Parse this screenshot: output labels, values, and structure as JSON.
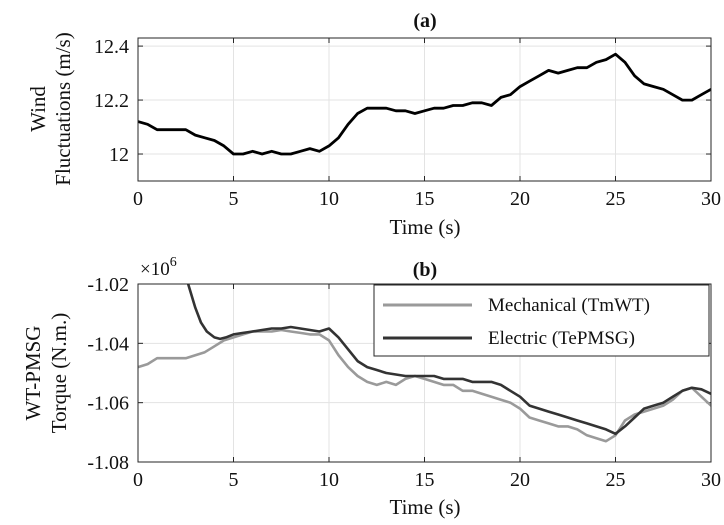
{
  "chart_data": [
    {
      "type": "line",
      "title": "(a)",
      "xlabel": "Time (s)",
      "ylabel_lines": [
        "Wind",
        "Fluctuations (m/s)"
      ],
      "xlim": [
        0,
        30
      ],
      "ylim": [
        11.9,
        12.43
      ],
      "xticks": [
        0,
        5,
        10,
        15,
        20,
        25,
        30
      ],
      "xtick_labels": [
        "0",
        "5",
        "10",
        "15",
        "20",
        "25",
        "30"
      ],
      "yticks": [
        12,
        12.2,
        12.4
      ],
      "ytick_labels": [
        "12",
        "12.2",
        "12.4"
      ],
      "grid": true,
      "series": [
        {
          "color": "#000000",
          "x": [
            0,
            0.5,
            1,
            1.5,
            2,
            2.5,
            3,
            3.5,
            4,
            4.5,
            5,
            5.5,
            6,
            6.5,
            7,
            7.5,
            8,
            8.5,
            9,
            9.5,
            10,
            10.5,
            11,
            11.5,
            12,
            12.5,
            13,
            13.5,
            14,
            14.5,
            15,
            15.5,
            16,
            16.5,
            17,
            17.5,
            18,
            18.5,
            19,
            19.5,
            20,
            20.5,
            21,
            21.5,
            22,
            22.5,
            23,
            23.5,
            24,
            24.5,
            25,
            25.5,
            26,
            26.5,
            27,
            27.5,
            28,
            28.5,
            29,
            29.5,
            30
          ],
          "y": [
            12.12,
            12.11,
            12.09,
            12.09,
            12.09,
            12.09,
            12.07,
            12.06,
            12.05,
            12.03,
            12.0,
            12.0,
            12.01,
            12.0,
            12.01,
            12.0,
            12.0,
            12.01,
            12.02,
            12.01,
            12.03,
            12.06,
            12.11,
            12.15,
            12.17,
            12.17,
            12.17,
            12.16,
            12.16,
            12.15,
            12.16,
            12.17,
            12.17,
            12.18,
            12.18,
            12.19,
            12.19,
            12.18,
            12.21,
            12.22,
            12.25,
            12.27,
            12.29,
            12.31,
            12.3,
            12.31,
            12.32,
            12.32,
            12.34,
            12.35,
            12.37,
            12.34,
            12.29,
            12.26,
            12.25,
            12.24,
            12.22,
            12.2,
            12.2,
            12.22,
            12.24
          ]
        }
      ]
    },
    {
      "type": "line",
      "title": "(b)",
      "xlabel": "Time (s)",
      "ylabel_lines": [
        "WT-PMSG",
        "Torque (N.m.)"
      ],
      "exponent_label": "×10",
      "exponent_power": "6",
      "xlim": [
        0,
        30
      ],
      "ylim": [
        -1.08,
        -1.02
      ],
      "xticks": [
        0,
        5,
        10,
        15,
        20,
        25,
        30
      ],
      "xtick_labels": [
        "0",
        "5",
        "10",
        "15",
        "20",
        "25",
        "30"
      ],
      "yticks": [
        -1.08,
        -1.06,
        -1.04,
        -1.02
      ],
      "ytick_labels": [
        "-1.08",
        "-1.06",
        "-1.04",
        "-1.02"
      ],
      "grid": true,
      "legend_position": "top-right",
      "series": [
        {
          "name": "Mechanical (TmWT)",
          "color": "#9a9a9a",
          "x": [
            0,
            0.5,
            1,
            1.5,
            2,
            2.5,
            3,
            3.5,
            4,
            4.5,
            5,
            5.5,
            6,
            6.5,
            7,
            7.5,
            8,
            8.5,
            9,
            9.5,
            10,
            10.5,
            11,
            11.5,
            12,
            12.5,
            13,
            13.5,
            14,
            14.5,
            15,
            15.5,
            16,
            16.5,
            17,
            17.5,
            18,
            18.5,
            19,
            19.5,
            20,
            20.5,
            21,
            21.5,
            22,
            22.5,
            23,
            23.5,
            24,
            24.5,
            25,
            25.5,
            26,
            26.5,
            27,
            27.5,
            28,
            28.5,
            29,
            29.5,
            30
          ],
          "y": [
            -1.048,
            -1.047,
            -1.045,
            -1.045,
            -1.045,
            -1.045,
            -1.044,
            -1.043,
            -1.041,
            -1.039,
            -1.038,
            -1.037,
            -1.036,
            -1.036,
            -1.036,
            -1.0355,
            -1.036,
            -1.0365,
            -1.037,
            -1.037,
            -1.039,
            -1.044,
            -1.048,
            -1.051,
            -1.053,
            -1.054,
            -1.053,
            -1.054,
            -1.052,
            -1.051,
            -1.052,
            -1.053,
            -1.054,
            -1.054,
            -1.056,
            -1.056,
            -1.057,
            -1.058,
            -1.059,
            -1.06,
            -1.062,
            -1.065,
            -1.066,
            -1.067,
            -1.068,
            -1.068,
            -1.069,
            -1.071,
            -1.072,
            -1.073,
            -1.071,
            -1.066,
            -1.064,
            -1.063,
            -1.062,
            -1.061,
            -1.059,
            -1.056,
            -1.055,
            -1.058,
            -1.061
          ]
        },
        {
          "name": "Electric (TePMSG)",
          "color": "#333333",
          "x": [
            2.6,
            3,
            3.3,
            3.6,
            4,
            4.3,
            4.6,
            5,
            5.5,
            6,
            6.5,
            7,
            7.5,
            8,
            8.5,
            9,
            9.5,
            10,
            10.5,
            11,
            11.5,
            12,
            12.5,
            13,
            13.5,
            14,
            14.5,
            15,
            15.5,
            16,
            16.5,
            17,
            17.5,
            18,
            18.5,
            19,
            19.5,
            20,
            20.5,
            21,
            21.5,
            22,
            22.5,
            23,
            23.5,
            24,
            24.5,
            25,
            25.5,
            26,
            26.5,
            27,
            27.5,
            28,
            28.5,
            29,
            29.5,
            30
          ],
          "y": [
            -1.0195,
            -1.028,
            -1.033,
            -1.036,
            -1.038,
            -1.0385,
            -1.038,
            -1.037,
            -1.0365,
            -1.036,
            -1.0355,
            -1.035,
            -1.035,
            -1.0345,
            -1.035,
            -1.0355,
            -1.036,
            -1.035,
            -1.038,
            -1.042,
            -1.046,
            -1.048,
            -1.049,
            -1.05,
            -1.0505,
            -1.051,
            -1.051,
            -1.051,
            -1.051,
            -1.052,
            -1.052,
            -1.052,
            -1.053,
            -1.053,
            -1.053,
            -1.054,
            -1.056,
            -1.058,
            -1.061,
            -1.062,
            -1.063,
            -1.064,
            -1.065,
            -1.066,
            -1.067,
            -1.068,
            -1.069,
            -1.0705,
            -1.068,
            -1.065,
            -1.062,
            -1.061,
            -1.06,
            -1.058,
            -1.056,
            -1.055,
            -1.0555,
            -1.057
          ]
        }
      ]
    }
  ]
}
